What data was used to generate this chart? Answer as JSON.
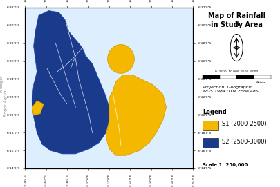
{
  "title": "Map of Rainfall\nin Study Area",
  "legend_title": "Legend",
  "legend_items": [
    {
      "label": "S1 (2000-2500)",
      "color": "#F5B800"
    },
    {
      "label": "S2 (2500-3000)",
      "color": "#1A3A8C"
    }
  ],
  "scale_text": "Scale 1: 250,000",
  "projection_text": "Projection: Geographic\nWGS 1984 UTM Zone 48S",
  "scalebar_text": "0  2500 10,000  2500  5000\n                  Meters",
  "bg_color": "#FFFFFF",
  "yellow_color": "#F5B800",
  "blue_color": "#1A3A8C",
  "font_size_title": 7,
  "font_size_legend": 6,
  "font_size_scale": 5.0,
  "watermark_text": "Bogor Agricu",
  "watermark_text2": "n Bogor",
  "x_ticks": [
    "106°4'0\"E",
    "106°6'0\"E",
    "106°8'0\"E",
    "106°10'0\"E",
    "106°12'0\"E",
    "106°14'0\"E",
    "106°16'0\"E",
    "106°18'0\"E",
    "106°20'0\"E"
  ],
  "y_ticks": [
    "6°14'0\"S",
    "6°16'0\"S",
    "6°18'0\"S",
    "6°20'0\"S",
    "6°22'0\"S",
    "6°24'0\"S",
    "6°26'0\"S",
    "6°28'0\"S",
    "6°30'0\"S",
    "6°32'0\"S"
  ]
}
